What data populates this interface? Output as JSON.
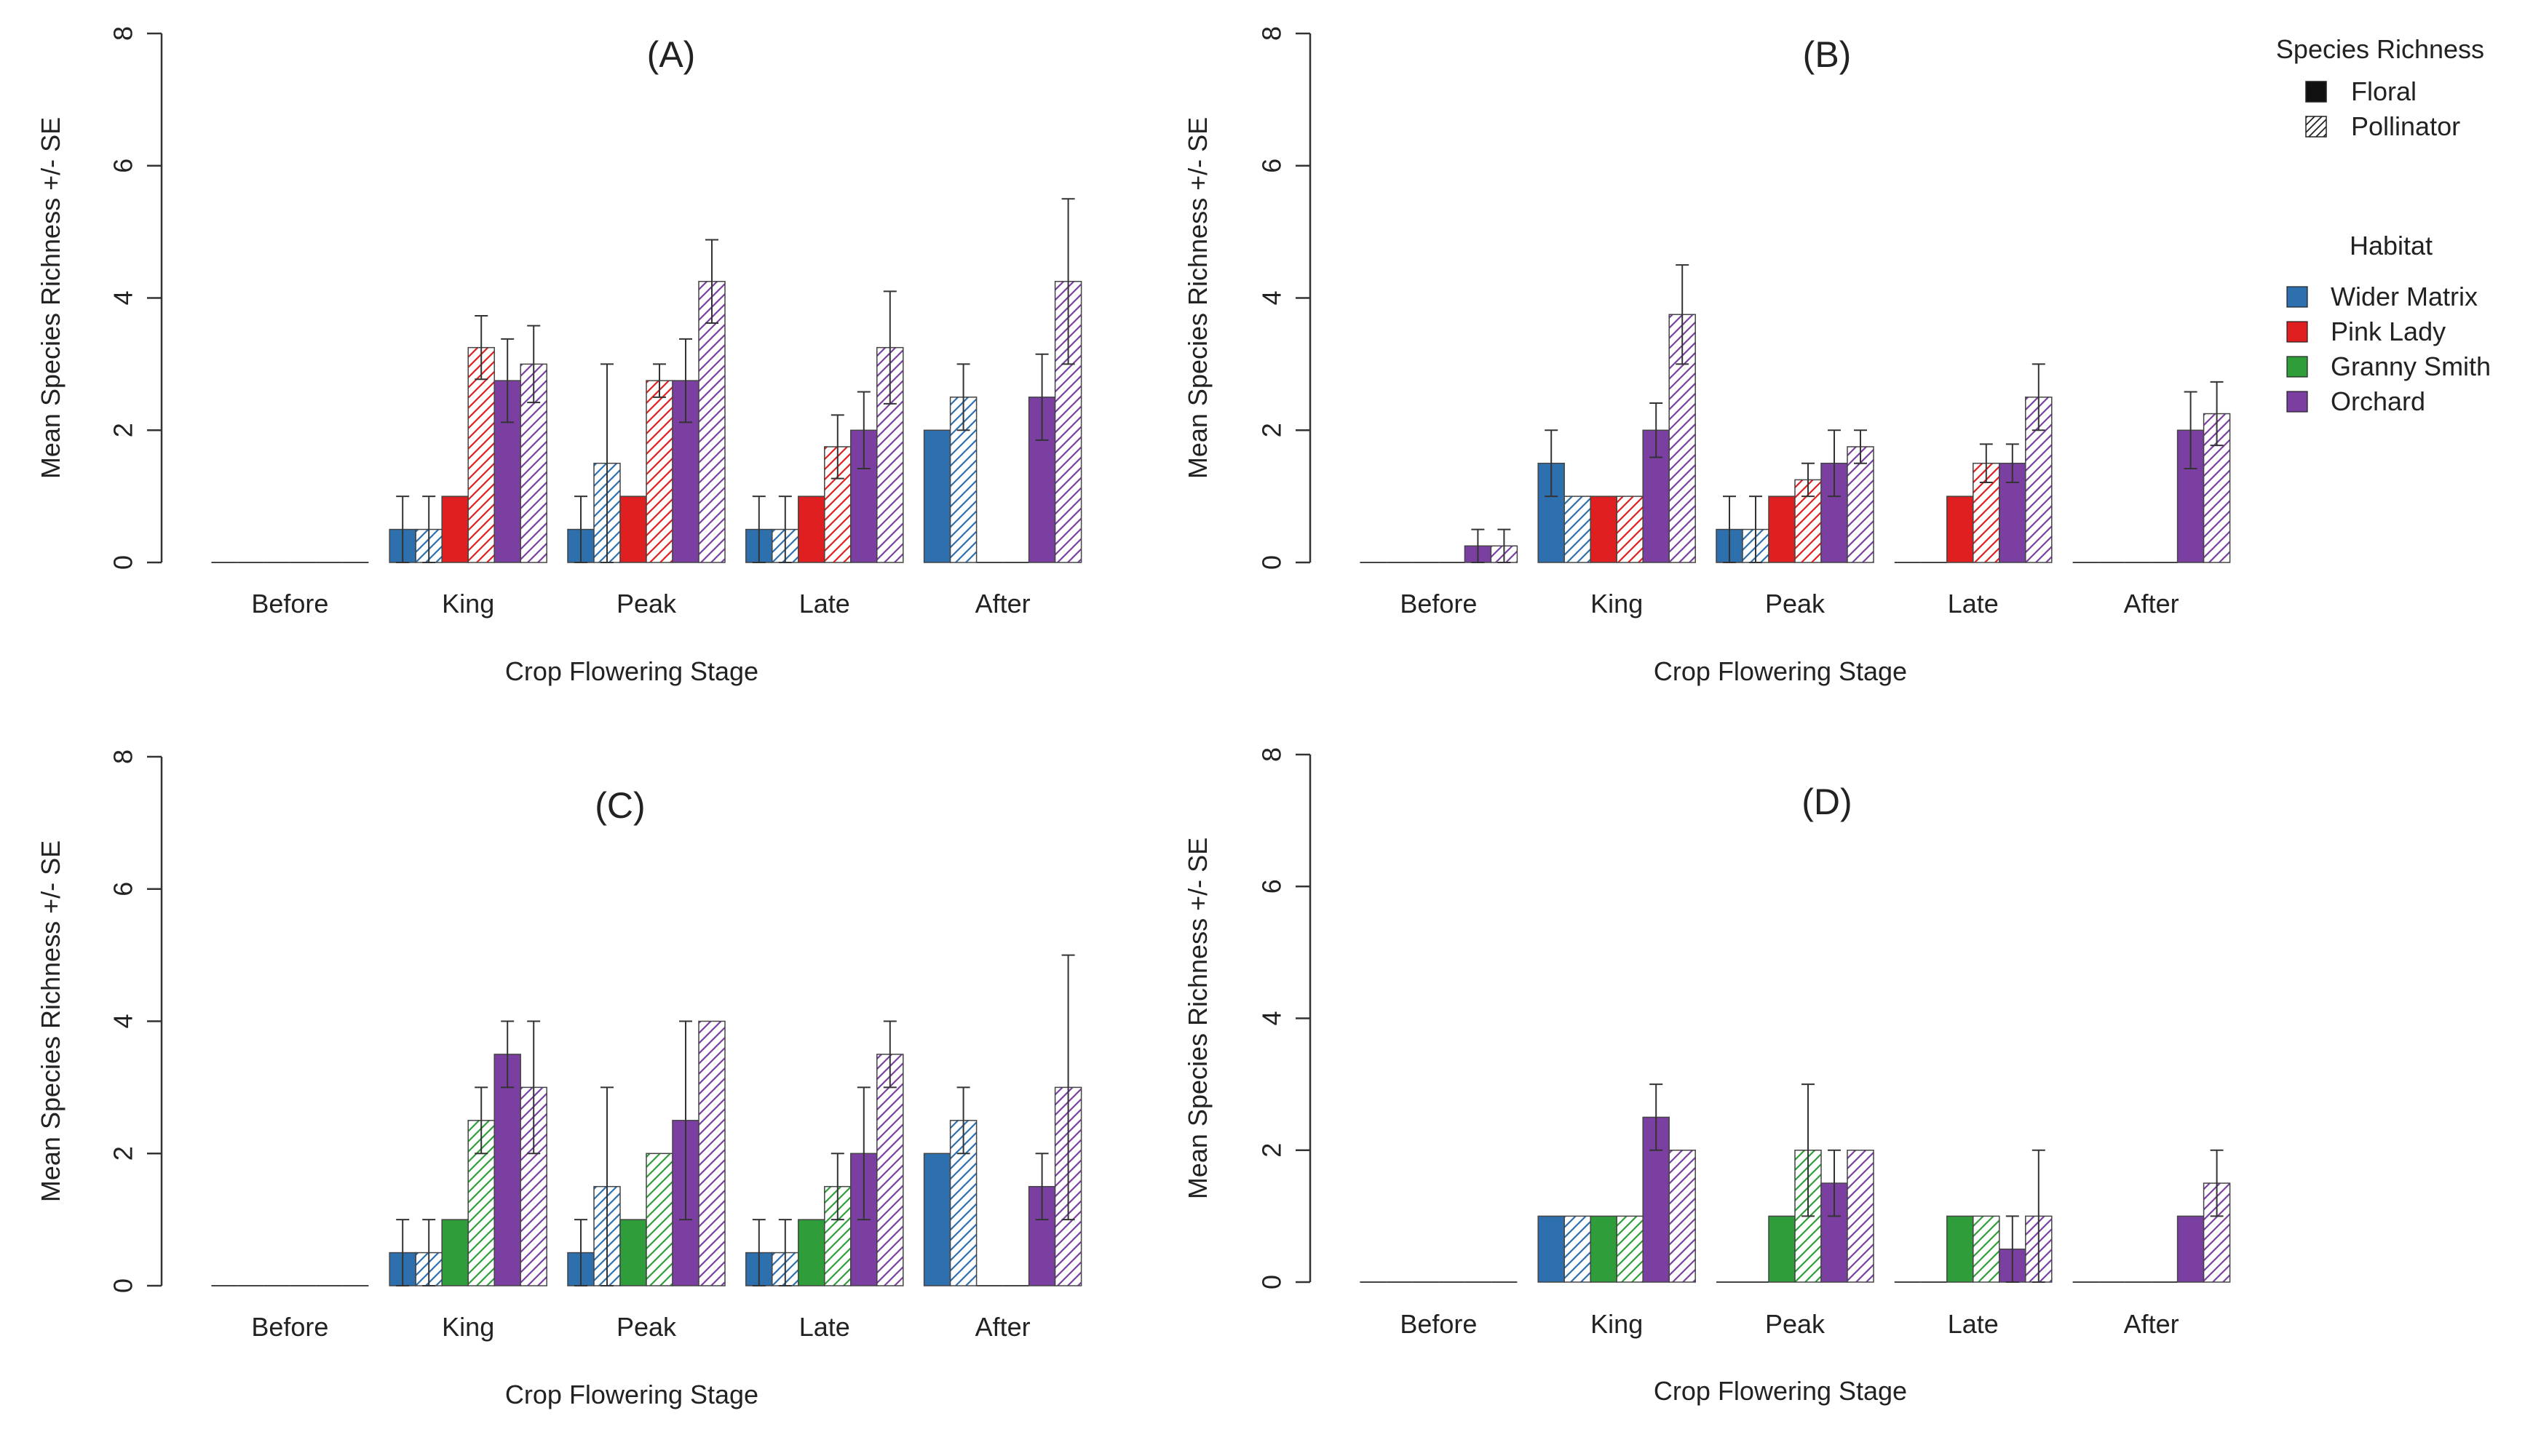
{
  "chart_data": {
    "type": "bar",
    "ylim": [
      0,
      8
    ],
    "yticks": [
      0,
      2,
      4,
      6,
      8
    ],
    "xlabel": "Crop Flowering Stage",
    "ylabel": "Mean Species Richness +/- SE",
    "categories": [
      "Before",
      "King",
      "Peak",
      "Late",
      "After"
    ],
    "legend": {
      "position": "top-right",
      "richness_title": "Species Richness",
      "richness_entries": [
        {
          "name": "Floral",
          "style": "solid"
        },
        {
          "name": "Pollinator",
          "style": "hatched"
        }
      ],
      "habitat_title": "Habitat",
      "habitat_entries": [
        {
          "name": "Wider Matrix",
          "color": "#2e6fad"
        },
        {
          "name": "Pink Lady",
          "color": "#e02020"
        },
        {
          "name": "Granny Smith",
          "color": "#2f9e3a"
        },
        {
          "name": "Orchard",
          "color": "#7a3fa0"
        }
      ]
    },
    "panels": [
      {
        "title": "(A)",
        "series": [
          {
            "habitat": "Wider Matrix",
            "richness": "Floral",
            "values": [
              0,
              0.5,
              0.5,
              0.5,
              2.0
            ],
            "err": [
              0,
              0.5,
              0.5,
              0.5,
              0
            ]
          },
          {
            "habitat": "Wider Matrix",
            "richness": "Pollinator",
            "values": [
              0,
              0.5,
              1.5,
              0.5,
              2.5
            ],
            "err": [
              0,
              0.5,
              1.5,
              0.5,
              0.5
            ]
          },
          {
            "habitat": "Pink Lady",
            "richness": "Floral",
            "values": [
              0,
              1.0,
              1.0,
              1.0,
              0
            ],
            "err": [
              0,
              0,
              0,
              0,
              0
            ]
          },
          {
            "habitat": "Pink Lady",
            "richness": "Pollinator",
            "values": [
              0,
              3.25,
              2.75,
              1.75,
              0
            ],
            "err": [
              0,
              0.48,
              0.25,
              0.48,
              0
            ]
          },
          {
            "habitat": "Orchard",
            "richness": "Floral",
            "values": [
              0,
              2.75,
              2.75,
              2.0,
              2.5
            ],
            "err": [
              0,
              0.63,
              0.63,
              0.58,
              0.65
            ]
          },
          {
            "habitat": "Orchard",
            "richness": "Pollinator",
            "values": [
              0,
              3.0,
              4.25,
              3.25,
              4.25
            ],
            "err": [
              0,
              0.58,
              0.63,
              0.85,
              1.25
            ]
          }
        ]
      },
      {
        "title": "(B)",
        "series": [
          {
            "habitat": "Wider Matrix",
            "richness": "Floral",
            "values": [
              0,
              1.5,
              0.5,
              0,
              0
            ],
            "err": [
              0,
              0.5,
              0.5,
              0,
              0
            ]
          },
          {
            "habitat": "Wider Matrix",
            "richness": "Pollinator",
            "values": [
              0,
              1.0,
              0.5,
              0,
              0
            ],
            "err": [
              0,
              0,
              0.5,
              0,
              0
            ]
          },
          {
            "habitat": "Pink Lady",
            "richness": "Floral",
            "values": [
              0,
              1.0,
              1.0,
              1.0,
              0
            ],
            "err": [
              0,
              0,
              0,
              0,
              0
            ]
          },
          {
            "habitat": "Pink Lady",
            "richness": "Pollinator",
            "values": [
              0,
              1.0,
              1.25,
              1.5,
              0
            ],
            "err": [
              0,
              0,
              0.25,
              0.29,
              0
            ]
          },
          {
            "habitat": "Orchard",
            "richness": "Floral",
            "values": [
              0.25,
              2.0,
              1.5,
              1.5,
              2.0
            ],
            "err": [
              0.25,
              0.41,
              0.5,
              0.29,
              0.58
            ]
          },
          {
            "habitat": "Orchard",
            "richness": "Pollinator",
            "values": [
              0.25,
              3.75,
              1.75,
              2.5,
              2.25
            ],
            "err": [
              0.25,
              0.75,
              0.25,
              0.5,
              0.48
            ]
          }
        ]
      },
      {
        "title": "(C)",
        "series": [
          {
            "habitat": "Wider Matrix",
            "richness": "Floral",
            "values": [
              0,
              0.5,
              0.5,
              0.5,
              2.0
            ],
            "err": [
              0,
              0.5,
              0.5,
              0.5,
              0
            ]
          },
          {
            "habitat": "Wider Matrix",
            "richness": "Pollinator",
            "values": [
              0,
              0.5,
              1.5,
              0.5,
              2.5
            ],
            "err": [
              0,
              0.5,
              1.5,
              0.5,
              0.5
            ]
          },
          {
            "habitat": "Granny Smith",
            "richness": "Floral",
            "values": [
              0,
              1.0,
              1.0,
              1.0,
              0
            ],
            "err": [
              0,
              0,
              0,
              0,
              0
            ]
          },
          {
            "habitat": "Granny Smith",
            "richness": "Pollinator",
            "values": [
              0,
              2.5,
              2.0,
              1.5,
              0
            ],
            "err": [
              0,
              0.5,
              0,
              0.5,
              0
            ]
          },
          {
            "habitat": "Orchard",
            "richness": "Floral",
            "values": [
              0,
              3.5,
              2.5,
              2.0,
              1.5
            ],
            "err": [
              0,
              0.5,
              1.5,
              1.0,
              0.5
            ]
          },
          {
            "habitat": "Orchard",
            "richness": "Pollinator",
            "values": [
              0,
              3.0,
              4.0,
              3.5,
              3.0
            ],
            "err": [
              0,
              1.0,
              0,
              0.5,
              2.0
            ]
          }
        ]
      },
      {
        "title": "(D)",
        "series": [
          {
            "habitat": "Wider Matrix",
            "richness": "Floral",
            "values": [
              0,
              1.0,
              0,
              0,
              0
            ],
            "err": [
              0,
              0,
              0,
              0,
              0
            ]
          },
          {
            "habitat": "Wider Matrix",
            "richness": "Pollinator",
            "values": [
              0,
              1.0,
              0,
              0,
              0
            ],
            "err": [
              0,
              0,
              0,
              0,
              0
            ]
          },
          {
            "habitat": "Granny Smith",
            "richness": "Floral",
            "values": [
              0,
              1.0,
              1.0,
              1.0,
              0
            ],
            "err": [
              0,
              0,
              0,
              0,
              0
            ]
          },
          {
            "habitat": "Granny Smith",
            "richness": "Pollinator",
            "values": [
              0,
              1.0,
              2.0,
              1.0,
              0
            ],
            "err": [
              0,
              0,
              1.0,
              0,
              0
            ]
          },
          {
            "habitat": "Orchard",
            "richness": "Floral",
            "values": [
              0,
              2.5,
              1.5,
              0.5,
              1.0
            ],
            "err": [
              0,
              0.5,
              0.5,
              0.5,
              0
            ]
          },
          {
            "habitat": "Orchard",
            "richness": "Pollinator",
            "values": [
              0,
              2.0,
              2.0,
              1.0,
              1.5
            ],
            "err": [
              0,
              0,
              0,
              1.0,
              0.5
            ]
          }
        ]
      }
    ]
  }
}
